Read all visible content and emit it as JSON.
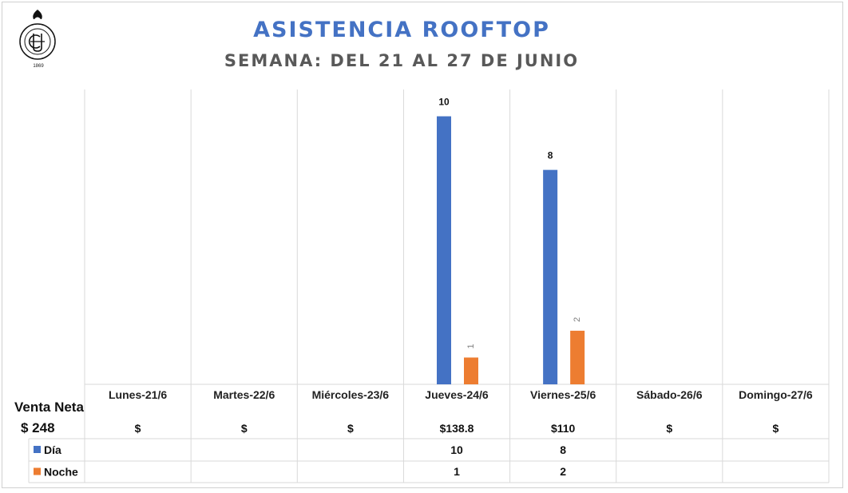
{
  "header": {
    "title": "ASISTENCIA ROOFTOP",
    "subtitle": "SEMANA: DEL 21 AL 27 DE JUNIO",
    "logo_text": "CLUB DE LA UNIÓN",
    "logo_city": "GUAYAQUIL",
    "logo_year": "1869"
  },
  "side": {
    "venta_label": "Venta Neta",
    "venta_total": "$ 248"
  },
  "chart_data": {
    "type": "bar",
    "categories": [
      "Lunes-21/6",
      "Martes-22/6",
      "Miércoles-23/6",
      "Jueves-24/6",
      "Viernes-25/6",
      "Sábado-26/6",
      "Domingo-27/6"
    ],
    "series": [
      {
        "name": "Día",
        "color": "#4472c4",
        "values": [
          null,
          null,
          null,
          10,
          8,
          null,
          null
        ],
        "labels": [
          "",
          "",
          "",
          "10",
          "8",
          "",
          ""
        ]
      },
      {
        "name": "Noche",
        "color": "#ed7d31",
        "values": [
          null,
          null,
          null,
          1,
          2,
          null,
          null
        ],
        "labels": [
          "",
          "",
          "",
          "1",
          "2",
          "",
          ""
        ]
      }
    ],
    "sales": [
      "$",
      "$",
      "$",
      "$138.8",
      "$110",
      "$",
      "$"
    ],
    "ylim": [
      0,
      11
    ],
    "legend": "data-table-left"
  }
}
